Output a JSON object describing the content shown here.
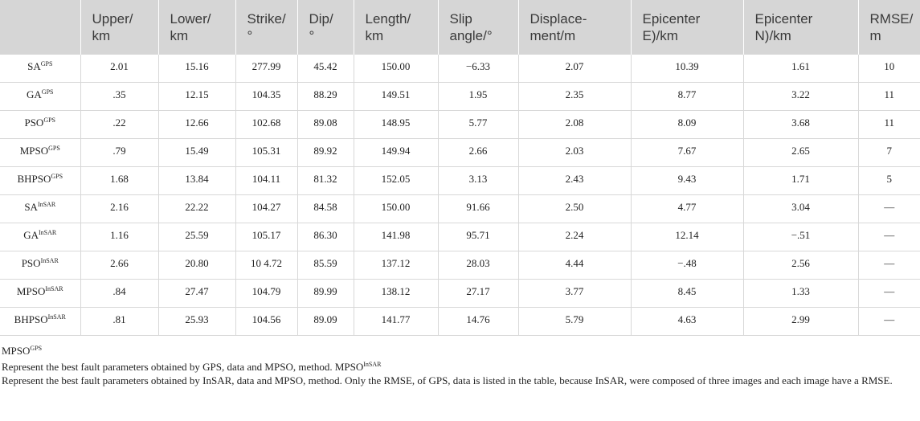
{
  "table": {
    "header": [
      [
        "Upper/",
        "km"
      ],
      [
        "Lower/",
        "km"
      ],
      [
        "Strike/",
        "°"
      ],
      [
        "Dip/",
        "°"
      ],
      [
        "Length/",
        "km"
      ],
      [
        "Slip",
        "angle/°"
      ],
      [
        "Displace-",
        "ment/m"
      ],
      [
        "Epicenter",
        "E)/km"
      ],
      [
        "Epicenter",
        "N)/km"
      ],
      [
        "RMSE/",
        "m"
      ]
    ],
    "rows": [
      {
        "name": "SA",
        "sup": "GPS",
        "cells": [
          "2.01",
          "15.16",
          "277.99",
          "45.42",
          "150.00",
          "−6.33",
          "2.07",
          "10.39",
          "1.61",
          "10"
        ]
      },
      {
        "name": "GA",
        "sup": "GPS",
        "cells": [
          ".35",
          "12.15",
          "104.35",
          "88.29",
          "149.51",
          "1.95",
          "2.35",
          "8.77",
          "3.22",
          "11"
        ]
      },
      {
        "name": "PSO",
        "sup": "GPS",
        "cells": [
          ".22",
          "12.66",
          "102.68",
          "89.08",
          "148.95",
          "5.77",
          "2.08",
          "8.09",
          "3.68",
          "11"
        ]
      },
      {
        "name": "MPSO",
        "sup": "GPS",
        "cells": [
          ".79",
          "15.49",
          "105.31",
          "89.92",
          "149.94",
          "2.66",
          "2.03",
          "7.67",
          "2.65",
          "7"
        ]
      },
      {
        "name": "BHPSO",
        "sup": "GPS",
        "cells": [
          "1.68",
          "13.84",
          "104.11",
          "81.32",
          "152.05",
          "3.13",
          "2.43",
          "9.43",
          "1.71",
          "5"
        ]
      },
      {
        "name": "SA",
        "sup": "InSAR",
        "cells": [
          "2.16",
          "22.22",
          "104.27",
          "84.58",
          "150.00",
          "91.66",
          "2.50",
          "4.77",
          "3.04",
          "—"
        ]
      },
      {
        "name": "GA",
        "sup": "InSAR",
        "cells": [
          "1.16",
          "25.59",
          "105.17",
          "86.30",
          "141.98",
          "95.71",
          "2.24",
          "12.14",
          "−.51",
          "—"
        ]
      },
      {
        "name": "PSO",
        "sup": "InSAR",
        "cells": [
          "2.66",
          "20.80",
          "10 4.72",
          "85.59",
          "137.12",
          "28.03",
          "4.44",
          "−.48",
          "2.56",
          "—"
        ]
      },
      {
        "name": "MPSO",
        "sup": "InSAR",
        "cells": [
          ".84",
          "27.47",
          "104.79",
          "89.99",
          "138.12",
          "27.17",
          "3.77",
          "8.45",
          "1.33",
          "—"
        ]
      },
      {
        "name": "BHPSO",
        "sup": "InSAR",
        "cells": [
          ".81",
          "25.93",
          "104.56",
          "89.09",
          "141.77",
          "14.76",
          "5.79",
          "4.63",
          "2.99",
          "—"
        ]
      }
    ]
  },
  "notes": [
    [
      {
        "text": "MPSO"
      },
      {
        "sup": "GPS"
      }
    ],
    [
      {
        "text": "Represent the best fault parameters obtained by GPS, data and MPSO, method. MPSO"
      },
      {
        "sup": "InSAR"
      }
    ],
    [
      {
        "text": "Represent the best fault parameters obtained by InSAR, data and MPSO, method. Only the RMSE, of GPS, data is listed in the table, because InSAR, were composed of three images and each image have a RMSE."
      }
    ]
  ]
}
